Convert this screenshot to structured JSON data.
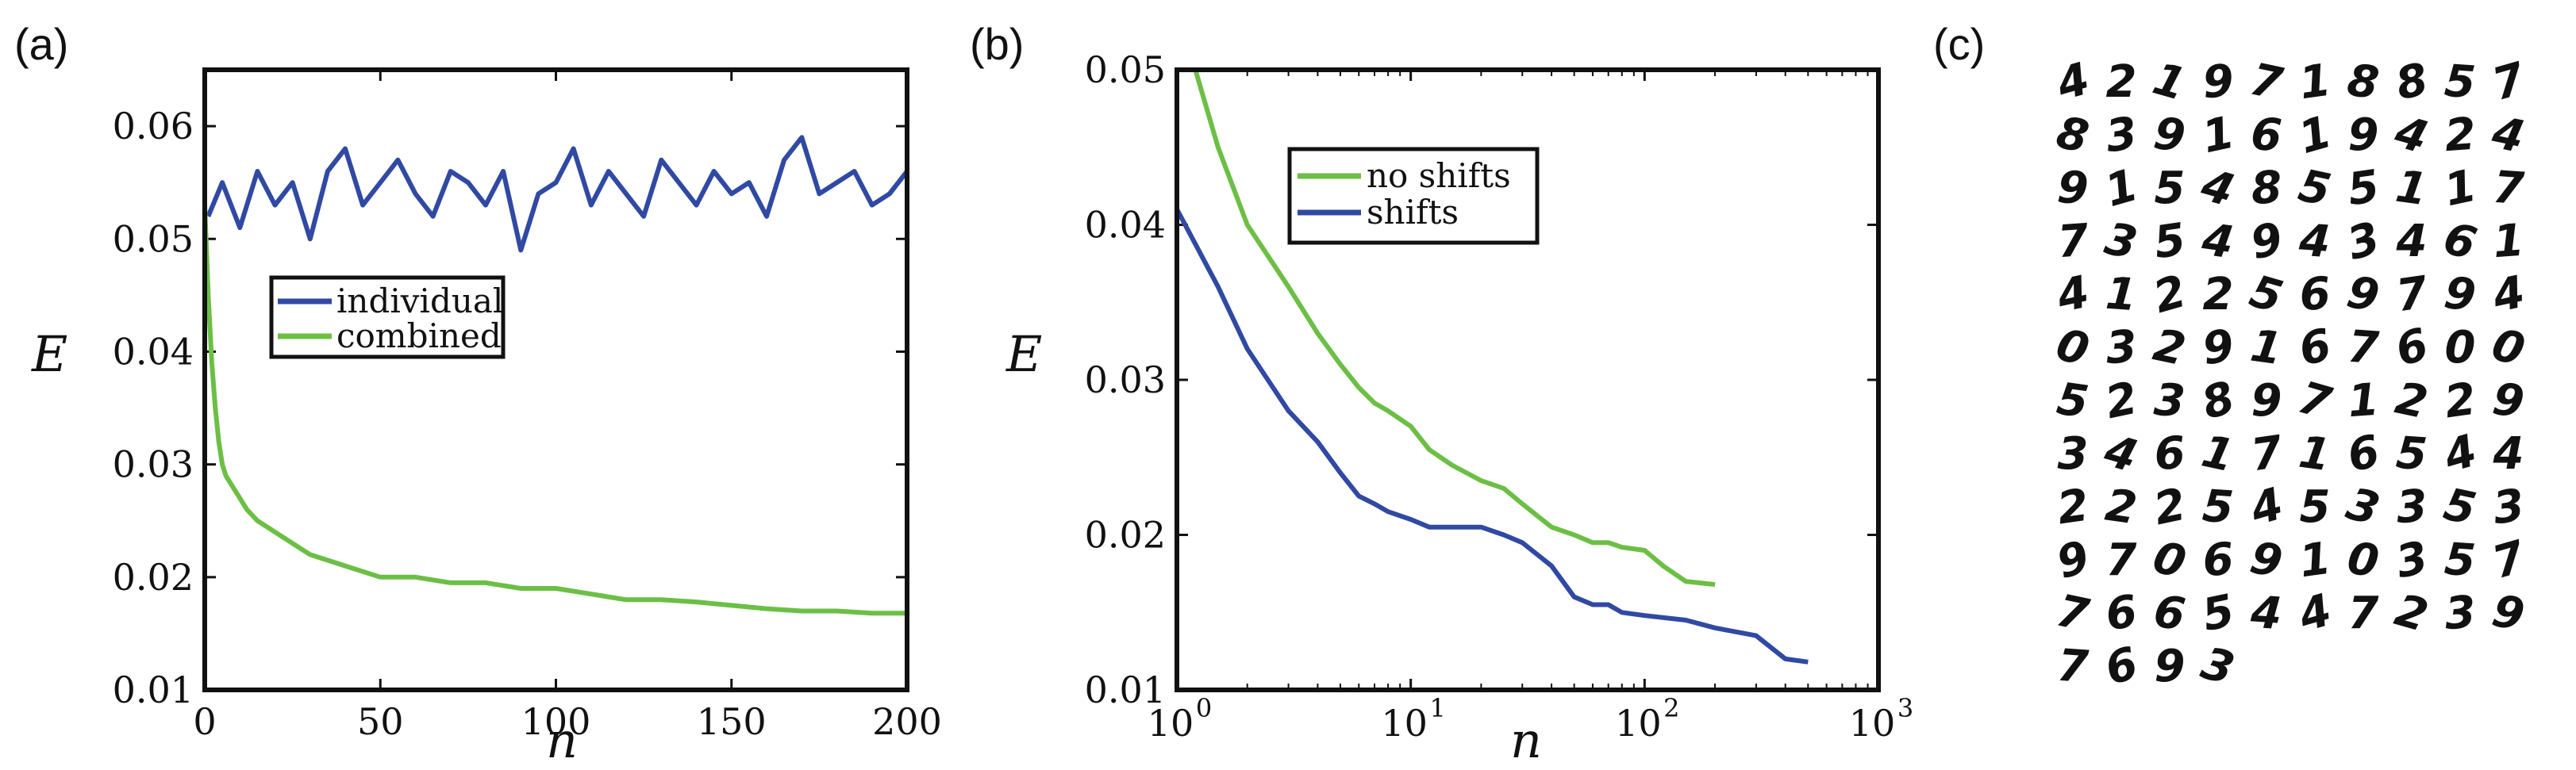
{
  "chart_data": [
    {
      "type": "line",
      "panel_label": "(a)",
      "xlabel": "n",
      "ylabel": "E",
      "xlim": [
        0,
        200
      ],
      "ylim": [
        0.01,
        0.065
      ],
      "xticks": [
        0,
        50,
        100,
        150,
        200
      ],
      "xtick_labels": [
        "0",
        "50",
        "100",
        "150",
        "200"
      ],
      "yticks": [
        0.01,
        0.02,
        0.03,
        0.04,
        0.05,
        0.06
      ],
      "ytick_labels": [
        "0.01",
        "0.02",
        "0.03",
        "0.04",
        "0.05",
        "0.06"
      ],
      "legend": {
        "position": "center-left",
        "entries": [
          "individual",
          "combined"
        ]
      },
      "series": [
        {
          "name": "individual",
          "color": "#3049a3",
          "x": [
            1,
            5,
            10,
            15,
            20,
            25,
            30,
            35,
            40,
            45,
            50,
            55,
            60,
            65,
            70,
            75,
            80,
            85,
            90,
            95,
            100,
            105,
            110,
            115,
            120,
            125,
            130,
            135,
            140,
            145,
            150,
            155,
            160,
            165,
            170,
            175,
            180,
            185,
            190,
            195,
            200
          ],
          "y": [
            0.052,
            0.055,
            0.051,
            0.056,
            0.053,
            0.055,
            0.05,
            0.056,
            0.058,
            0.053,
            0.055,
            0.057,
            0.054,
            0.052,
            0.056,
            0.055,
            0.053,
            0.056,
            0.049,
            0.054,
            0.055,
            0.058,
            0.053,
            0.056,
            0.054,
            0.052,
            0.057,
            0.055,
            0.053,
            0.056,
            0.054,
            0.055,
            0.052,
            0.057,
            0.059,
            0.054,
            0.055,
            0.056,
            0.053,
            0.054,
            0.056
          ]
        },
        {
          "name": "combined",
          "color": "#6cbf45",
          "x": [
            0,
            1,
            2,
            3,
            4,
            5,
            6,
            8,
            10,
            12,
            15,
            20,
            25,
            30,
            40,
            50,
            60,
            70,
            80,
            90,
            100,
            110,
            120,
            130,
            140,
            150,
            160,
            170,
            180,
            190,
            200
          ],
          "y": [
            0.053,
            0.045,
            0.039,
            0.035,
            0.032,
            0.03,
            0.029,
            0.028,
            0.027,
            0.026,
            0.025,
            0.024,
            0.023,
            0.022,
            0.021,
            0.02,
            0.02,
            0.0195,
            0.0195,
            0.019,
            0.019,
            0.0185,
            0.018,
            0.018,
            0.0178,
            0.0175,
            0.0172,
            0.017,
            0.017,
            0.0168,
            0.0168
          ]
        }
      ]
    },
    {
      "type": "line",
      "panel_label": "(b)",
      "xlabel": "n",
      "ylabel": "E",
      "xscale": "log",
      "xlim": [
        1,
        1000
      ],
      "ylim": [
        0.01,
        0.05
      ],
      "xticks": [
        1,
        10,
        100,
        1000
      ],
      "xtick_labels": [
        {
          "base": "10",
          "exp": "0"
        },
        {
          "base": "10",
          "exp": "1"
        },
        {
          "base": "10",
          "exp": "2"
        },
        {
          "base": "10",
          "exp": "3"
        }
      ],
      "yticks": [
        0.01,
        0.02,
        0.03,
        0.04,
        0.05
      ],
      "ytick_labels": [
        "0.01",
        "0.02",
        "0.03",
        "0.04",
        "0.05"
      ],
      "legend": {
        "position": "top-center",
        "entries": [
          "no shifts",
          "shifts"
        ]
      },
      "series": [
        {
          "name": "no shifts",
          "color": "#6cbf45",
          "x": [
            1.2,
            1.5,
            2,
            3,
            4,
            5,
            6,
            7,
            8,
            10,
            12,
            15,
            20,
            25,
            30,
            40,
            50,
            60,
            70,
            80,
            100,
            120,
            150,
            200
          ],
          "y": [
            0.05,
            0.045,
            0.04,
            0.036,
            0.033,
            0.031,
            0.0295,
            0.0285,
            0.028,
            0.027,
            0.0255,
            0.0245,
            0.0235,
            0.023,
            0.022,
            0.0205,
            0.02,
            0.0195,
            0.0195,
            0.0192,
            0.019,
            0.018,
            0.017,
            0.0168
          ]
        },
        {
          "name": "shifts",
          "color": "#3049a3",
          "x": [
            1,
            1.5,
            2,
            3,
            4,
            5,
            6,
            7,
            8,
            10,
            12,
            15,
            20,
            25,
            30,
            40,
            50,
            60,
            70,
            80,
            100,
            150,
            200,
            300,
            400,
            500
          ],
          "y": [
            0.041,
            0.036,
            0.032,
            0.028,
            0.026,
            0.024,
            0.0225,
            0.022,
            0.0215,
            0.021,
            0.0205,
            0.0205,
            0.0205,
            0.02,
            0.0195,
            0.018,
            0.016,
            0.0155,
            0.0155,
            0.015,
            0.0148,
            0.0145,
            0.014,
            0.0135,
            0.012,
            0.0118
          ]
        }
      ]
    }
  ],
  "panel_c": {
    "label": "(c)",
    "digit_rows": [
      [
        "4",
        "2",
        "1",
        "9",
        "7",
        "1",
        "8",
        "8",
        "5",
        "7"
      ],
      [
        "8",
        "3",
        "9",
        "1",
        "6",
        "1",
        "9",
        "4",
        "2",
        "4"
      ],
      [
        "9",
        "1",
        "5",
        "4",
        "8",
        "5",
        "5",
        "1",
        "1",
        "7"
      ],
      [
        "7",
        "3",
        "5",
        "4",
        "9",
        "4",
        "3",
        "4",
        "6",
        "1"
      ],
      [
        "4",
        "1",
        "2",
        "2",
        "5",
        "6",
        "9",
        "7",
        "9",
        "4"
      ],
      [
        "0",
        "3",
        "2",
        "9",
        "1",
        "6",
        "7",
        "6",
        "0",
        "0"
      ],
      [
        "5",
        "2",
        "3",
        "8",
        "9",
        "7",
        "1",
        "2",
        "2",
        "9"
      ],
      [
        "3",
        "4",
        "6",
        "1",
        "7",
        "1",
        "6",
        "5",
        "4",
        "4"
      ],
      [
        "2",
        "2",
        "2",
        "5",
        "4",
        "5",
        "3",
        "3",
        "5",
        "3"
      ],
      [
        "9",
        "7",
        "0",
        "6",
        "9",
        "1",
        "0",
        "3",
        "5",
        "7"
      ],
      [
        "7",
        "6",
        "6",
        "5",
        "4",
        "4",
        "7",
        "2",
        "3",
        "9"
      ],
      [
        "7",
        "6",
        "9",
        "3"
      ]
    ]
  }
}
